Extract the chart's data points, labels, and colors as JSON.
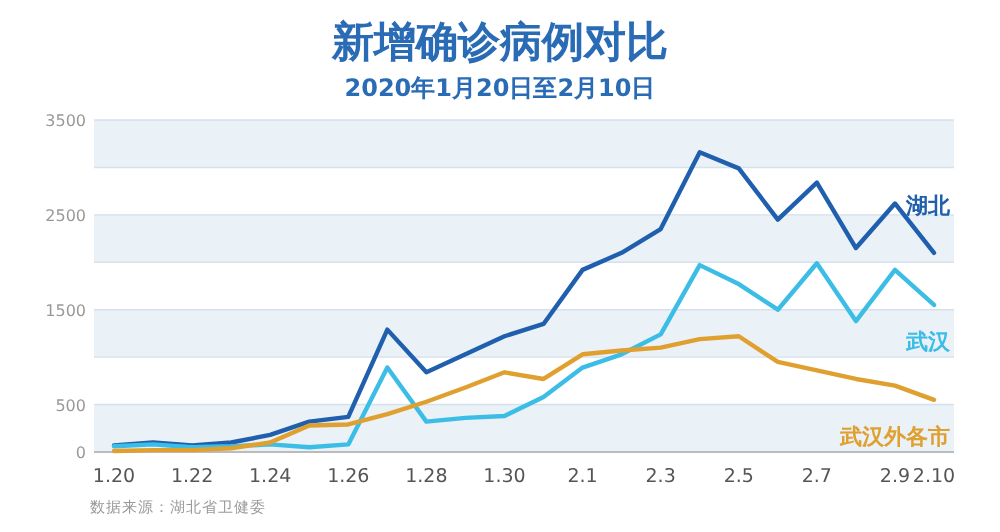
{
  "chart_data": {
    "type": "line",
    "title": "新增确诊病例对比",
    "subtitle": "2020年1月20日至2月10日",
    "categories": [
      "1.20",
      null,
      "1.22",
      null,
      "1.24",
      null,
      "1.26",
      null,
      "1.28",
      null,
      "1.30",
      null,
      "2.1",
      null,
      "2.3",
      null,
      "2.5",
      null,
      "2.7",
      null,
      "2.9",
      "2.10"
    ],
    "series": [
      {
        "name": "湖北",
        "color": "#1f5fae",
        "values": [
          70,
          100,
          70,
          100,
          180,
          320,
          370,
          1290,
          840,
          1030,
          1220,
          1350,
          1920,
          2100,
          2350,
          3160,
          2990,
          2450,
          2840,
          2150,
          2620,
          2100
        ]
      },
      {
        "name": "武汉",
        "color": "#3bbde6",
        "values": [
          60,
          80,
          50,
          60,
          80,
          50,
          80,
          890,
          320,
          360,
          380,
          580,
          890,
          1030,
          1240,
          1970,
          1770,
          1500,
          1990,
          1380,
          1920,
          1550
        ]
      },
      {
        "name": "武汉外各市",
        "color": "#e0a030",
        "values": [
          10,
          20,
          20,
          40,
          100,
          280,
          290,
          400,
          530,
          680,
          840,
          770,
          1030,
          1070,
          1100,
          1190,
          1220,
          950,
          860,
          770,
          700,
          550
        ]
      }
    ],
    "ylim": [
      0,
      3500
    ],
    "yticks": [
      0,
      500,
      {
        "value": 1000,
        "label": null
      },
      1500,
      {
        "value": 2000,
        "label": null
      },
      2500,
      {
        "value": 3000,
        "label": null
      },
      3500
    ],
    "grid": "y",
    "legend": false,
    "marker": "none",
    "line_style": "solid",
    "annotations": [
      "数据来源：湖北省卫健委"
    ]
  }
}
